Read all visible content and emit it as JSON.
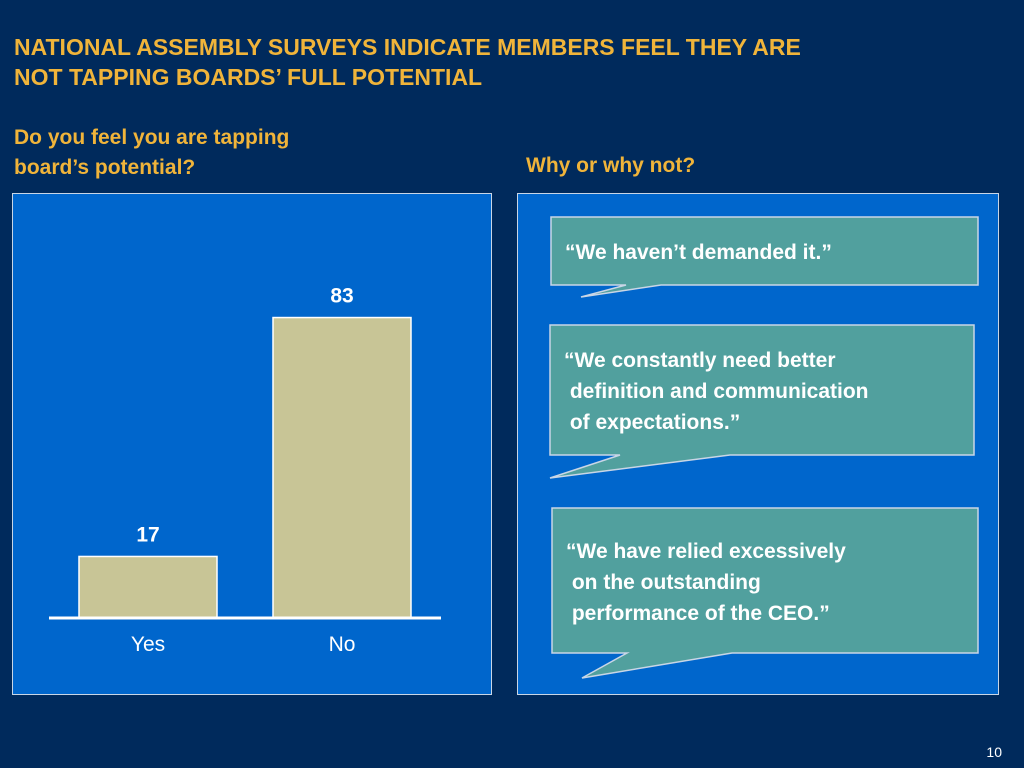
{
  "slide": {
    "title": "NATIONAL ASSEMBLY SURVEYS INDICATE MEMBERS FEEL THEY ARE\nNOT TAPPING BOARDS’ FULL POTENTIAL",
    "left_question": "Do you feel you are tapping\nboard’s potential?",
    "right_question": "Why or why not?",
    "page_number": "10"
  },
  "quotes": [
    "“We haven’t demanded it.”",
    "“We constantly need better\n definition and communication\n of expectations.”",
    "“We have relied excessively\n on the outstanding\n performance of the CEO.”"
  ],
  "colors": {
    "background": "#002a5c",
    "panel": "#0066cc",
    "accent_text": "#f0b43a",
    "bar": "#c8c596",
    "bubble": "#51a09e"
  },
  "chart_data": {
    "type": "bar",
    "categories": [
      "Yes",
      "No"
    ],
    "values": [
      17,
      83
    ],
    "data_labels": [
      "17",
      "83"
    ],
    "ylim": [
      0,
      100
    ],
    "grid": false,
    "title": "",
    "xlabel": "",
    "ylabel": ""
  }
}
